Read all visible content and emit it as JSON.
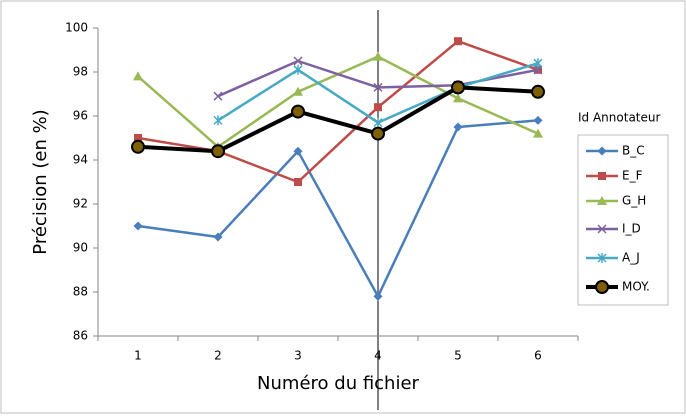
{
  "chart_data": {
    "type": "line",
    "x_label": "Numéro du fichier",
    "y_label": "Précision (en %)",
    "legend_title": "Id Annotateur",
    "legend": "right",
    "categories": [
      1,
      2,
      3,
      4,
      5,
      6
    ],
    "ylim": [
      86,
      100
    ],
    "yticks": [
      86,
      88,
      90,
      92,
      94,
      96,
      98,
      100
    ],
    "grid": false,
    "series": [
      {
        "name": "B_C",
        "color": "#4a7ebb",
        "marker": "diamond",
        "values": [
          91.0,
          90.5,
          94.4,
          87.8,
          95.5,
          95.8
        ]
      },
      {
        "name": "E_F",
        "color": "#be4b48",
        "marker": "square",
        "values": [
          95.0,
          94.4,
          93.0,
          96.4,
          99.4,
          98.1
        ]
      },
      {
        "name": "G_H",
        "color": "#98b954",
        "marker": "triangle",
        "values": [
          97.8,
          94.6,
          97.1,
          98.7,
          96.8,
          95.2
        ]
      },
      {
        "name": "I_D",
        "color": "#7d60a0",
        "marker": "x",
        "values": [
          null,
          96.9,
          98.5,
          97.3,
          97.4,
          98.1
        ]
      },
      {
        "name": "A_J",
        "color": "#46aac5",
        "marker": "star",
        "values": [
          null,
          95.8,
          98.1,
          95.7,
          97.3,
          98.4
        ]
      },
      {
        "name": "MOY.",
        "color": "#000000",
        "marker": "circle",
        "values": [
          94.6,
          94.4,
          96.2,
          95.2,
          97.3,
          97.1
        ]
      }
    ]
  }
}
